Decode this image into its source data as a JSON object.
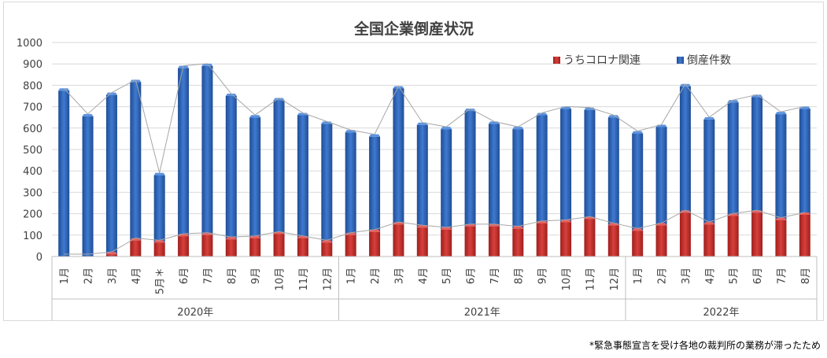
{
  "chart_data": {
    "type": "bar",
    "title": "全国企業倒産状況",
    "ylim": [
      0,
      1000
    ],
    "yticks": [
      0,
      100,
      200,
      300,
      400,
      500,
      600,
      700,
      800,
      900,
      1000
    ],
    "grid": true,
    "legend_position": "top-right",
    "categories": [
      "1月",
      "2月",
      "3月",
      "4月",
      "5月＊",
      "6月",
      "7月",
      "8月",
      "9月",
      "10月",
      "11月",
      "12月",
      "1月",
      "2月",
      "3月",
      "4月",
      "5月",
      "6月",
      "7月",
      "8月",
      "9月",
      "10月",
      "11月",
      "12月",
      "1月",
      "2月",
      "3月",
      "4月",
      "5月",
      "6月",
      "7月",
      "8月"
    ],
    "groups": [
      {
        "label": "2020年",
        "count": 12
      },
      {
        "label": "2021年",
        "count": 12
      },
      {
        "label": "2022年",
        "count": 8
      }
    ],
    "series": [
      {
        "name": "うちコロナ関連",
        "color": "#c0302d",
        "values": [
          0,
          0,
          10,
          75,
          65,
          95,
          100,
          80,
          85,
          105,
          85,
          65,
          100,
          115,
          150,
          135,
          125,
          140,
          140,
          130,
          155,
          160,
          175,
          145,
          120,
          145,
          205,
          150,
          190,
          205,
          170,
          195
        ]
      },
      {
        "name": "倒産件数",
        "color": "#2f63b3",
        "values": [
          775,
          655,
          755,
          815,
          380,
          880,
          890,
          750,
          650,
          730,
          660,
          620,
          580,
          560,
          785,
          615,
          595,
          680,
          620,
          595,
          660,
          690,
          685,
          650,
          575,
          605,
          795,
          640,
          720,
          745,
          665,
          690
        ]
      }
    ]
  },
  "footnote": "*緊急事態宣言を受け各地の裁判所の業務が滞ったため"
}
